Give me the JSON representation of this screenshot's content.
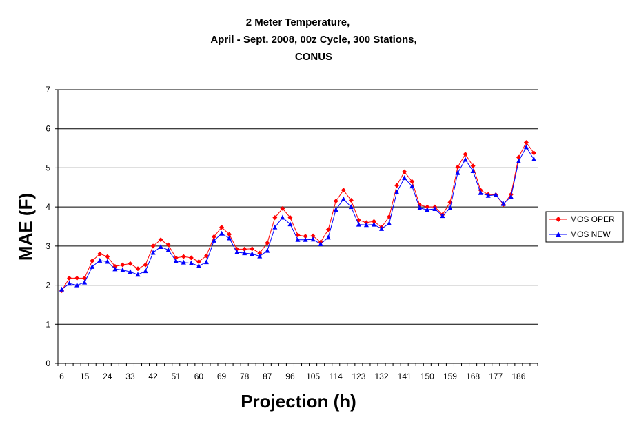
{
  "chart_data": {
    "type": "line",
    "title": [
      "2 Meter Temperature,",
      "April - Sept. 2008, 00z Cycle, 300 Stations,",
      "CONUS"
    ],
    "xlabel": "Projection (h)",
    "ylabel": "MAE (F)",
    "ylim": [
      0,
      7
    ],
    "yticks": [
      "0",
      "1",
      "2",
      "3",
      "4",
      "5",
      "6",
      "7"
    ],
    "x": [
      6,
      9,
      12,
      15,
      18,
      21,
      24,
      27,
      30,
      33,
      36,
      39,
      42,
      45,
      48,
      51,
      54,
      57,
      60,
      63,
      66,
      69,
      72,
      75,
      78,
      81,
      84,
      87,
      90,
      93,
      96,
      99,
      102,
      105,
      108,
      111,
      114,
      117,
      120,
      123,
      126,
      129,
      132,
      135,
      138,
      141,
      144,
      147,
      150,
      153,
      156,
      159,
      162,
      165,
      168,
      171,
      174,
      177,
      180,
      183,
      186,
      189,
      192
    ],
    "xtick_labels": [
      "6",
      "15",
      "24",
      "33",
      "42",
      "51",
      "60",
      "69",
      "78",
      "87",
      "96",
      "105",
      "114",
      "123",
      "132",
      "141",
      "150",
      "159",
      "168",
      "177",
      "186"
    ],
    "grid": "horizontal",
    "legend_position": "right",
    "series": [
      {
        "name": "MOS OPER",
        "color": "#ff0000",
        "marker": "diamond",
        "values": [
          1.86,
          2.18,
          2.18,
          2.18,
          2.62,
          2.8,
          2.73,
          2.48,
          2.52,
          2.55,
          2.42,
          2.52,
          3.0,
          3.16,
          3.03,
          2.7,
          2.73,
          2.7,
          2.6,
          2.75,
          3.24,
          3.48,
          3.3,
          2.92,
          2.92,
          2.93,
          2.82,
          3.08,
          3.73,
          3.96,
          3.73,
          3.28,
          3.25,
          3.26,
          3.1,
          3.42,
          4.15,
          4.43,
          4.17,
          3.66,
          3.6,
          3.63,
          3.48,
          3.75,
          4.55,
          4.9,
          4.65,
          4.05,
          4.0,
          4.0,
          3.8,
          4.12,
          5.02,
          5.35,
          5.05,
          4.43,
          4.32,
          4.31,
          4.06,
          4.32,
          5.27,
          5.65,
          5.38
        ]
      },
      {
        "name": "MOS NEW",
        "color": "#0000ff",
        "marker": "triangle",
        "values": [
          1.89,
          2.04,
          2.0,
          2.07,
          2.47,
          2.63,
          2.6,
          2.41,
          2.39,
          2.34,
          2.27,
          2.36,
          2.83,
          2.98,
          2.9,
          2.62,
          2.58,
          2.56,
          2.49,
          2.59,
          3.14,
          3.32,
          3.2,
          2.84,
          2.82,
          2.8,
          2.74,
          2.88,
          3.48,
          3.73,
          3.56,
          3.16,
          3.16,
          3.17,
          3.05,
          3.22,
          3.93,
          4.2,
          4.0,
          3.55,
          3.54,
          3.55,
          3.44,
          3.58,
          4.38,
          4.74,
          4.53,
          3.97,
          3.93,
          3.95,
          3.77,
          3.97,
          4.87,
          5.21,
          4.92,
          4.36,
          4.29,
          4.31,
          4.08,
          4.26,
          5.17,
          5.53,
          5.22
        ]
      }
    ]
  }
}
